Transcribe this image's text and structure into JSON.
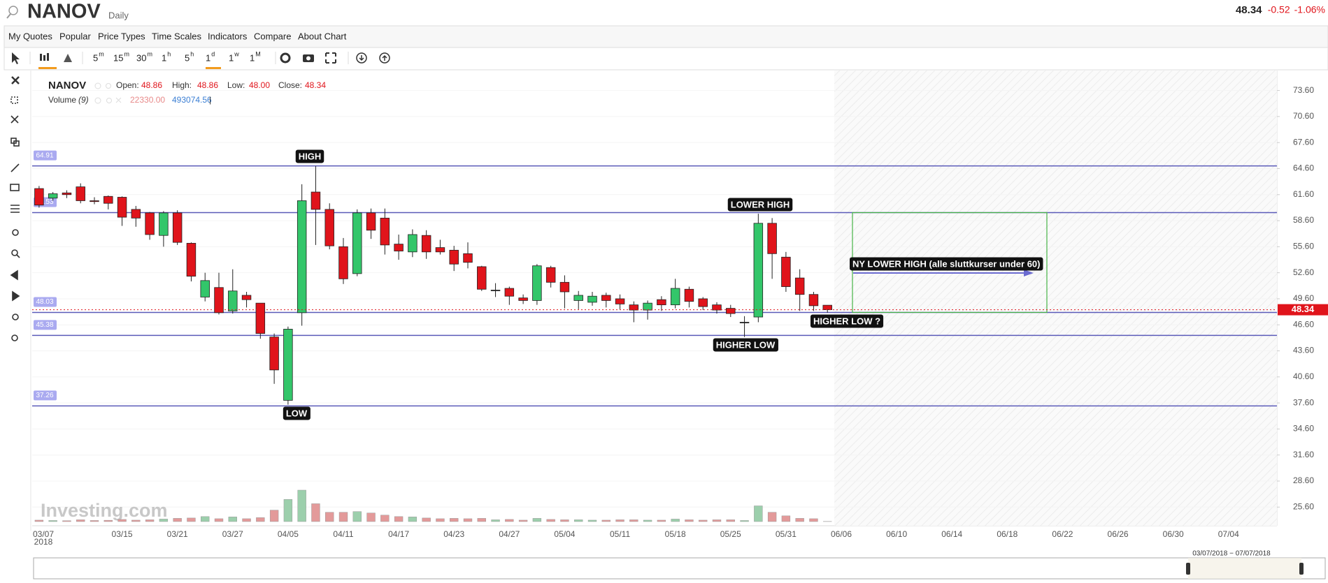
{
  "header": {
    "symbol": "NANOV",
    "interval": "Daily",
    "price": "48.34",
    "change": "-0.52",
    "change_pct": "-1.06%"
  },
  "menu": [
    "My Quotes",
    "Popular",
    "Price Types",
    "Time Scales",
    "Indicators",
    "Compare",
    "About Chart"
  ],
  "toolbar": {
    "timeframes": [
      {
        "n": "5",
        "u": "m"
      },
      {
        "n": "15",
        "u": "m"
      },
      {
        "n": "30",
        "u": "m"
      },
      {
        "n": "1",
        "u": "h"
      },
      {
        "n": "5",
        "u": "h"
      },
      {
        "n": "1",
        "u": "d"
      },
      {
        "n": "1",
        "u": "w"
      },
      {
        "n": "1",
        "u": "M"
      }
    ]
  },
  "legend": {
    "symbol": "NANOV",
    "open_label": "Open:",
    "open": "48.86",
    "high_label": "High:",
    "high": "48.86",
    "low_label": "Low:",
    "low": "48.00",
    "close_label": "Close:",
    "close": "48.34",
    "volume_label": "Volume",
    "volume_period": "(9)",
    "volume": "22330.00",
    "volume_ma": "493074.56",
    "separator": "|"
  },
  "chart_data": {
    "type": "candlestick",
    "up_color": "#33c66a",
    "down_color": "#e0141b",
    "volume_up_color": "#9ccfac",
    "volume_down_color": "#e39a9a",
    "level_color": "#5a5ab8",
    "grid": true,
    "categories": [
      "03/07",
      null,
      null,
      null,
      null,
      null,
      "03/15",
      null,
      null,
      null,
      "03/21",
      null,
      null,
      null,
      "03/27",
      null,
      null,
      null,
      "04/05",
      null,
      null,
      null,
      "04/11",
      null,
      null,
      null,
      "04/17",
      null,
      null,
      null,
      "04/23",
      null,
      null,
      null,
      "04/27",
      null,
      null,
      null,
      "05/04",
      null,
      null,
      null,
      "05/11",
      null,
      null,
      null,
      "05/18",
      null,
      null,
      null,
      "05/25",
      null,
      null,
      null,
      "05/31",
      null,
      null,
      null,
      "06/06",
      null,
      null,
      null,
      "06/10",
      null,
      null,
      null,
      "06/14",
      null,
      null,
      null,
      "06/18",
      null,
      null,
      null,
      "06/22",
      null,
      null,
      null,
      "06/26",
      null,
      null,
      null,
      "06/30",
      null,
      null,
      null,
      "07/04",
      null,
      null,
      null
    ],
    "x_sub_label": "2018",
    "open": [
      62.3,
      61.2,
      61.8,
      62.5,
      60.9,
      61.4,
      61.3,
      59.9,
      59.5,
      56.9,
      59.5,
      56.0,
      49.8,
      50.9,
      48.2,
      50.0,
      49.1,
      45.2,
      37.9,
      48.0,
      61.9,
      59.9,
      55.6,
      52.5,
      59.5,
      58.9,
      55.9,
      55.0,
      56.9,
      55.5,
      55.2,
      54.8,
      53.3,
      50.6,
      50.8,
      49.7,
      49.4,
      53.2,
      51.5,
      49.4,
      49.2,
      50.0,
      49.6,
      48.9,
      48.3,
      49.5,
      48.9,
      50.7,
      49.6,
      48.9,
      48.5,
      46.9,
      47.5,
      58.3,
      54.4,
      52.0,
      50.1,
      48.86,
      null,
      null,
      null,
      null,
      null,
      null,
      null,
      null,
      null,
      null,
      null,
      null,
      null,
      null,
      null,
      null,
      null,
      null,
      null,
      null,
      null,
      null,
      null,
      null,
      null,
      null,
      null,
      null,
      null,
      null,
      null,
      null
    ],
    "high": [
      62.6,
      61.9,
      62.1,
      62.9,
      61.3,
      61.5,
      61.4,
      60.3,
      59.6,
      59.7,
      59.8,
      56.1,
      52.6,
      52.6,
      53.0,
      50.4,
      49.1,
      45.6,
      46.4,
      62.8,
      64.9,
      60.6,
      56.6,
      59.9,
      60.0,
      60.0,
      57.0,
      57.6,
      57.5,
      56.4,
      55.7,
      56.1,
      53.4,
      51.4,
      51.0,
      50.1,
      53.6,
      53.4,
      52.3,
      50.5,
      50.4,
      50.3,
      50.1,
      49.3,
      49.4,
      49.9,
      51.9,
      51.0,
      49.8,
      49.2,
      48.9,
      47.6,
      59.4,
      58.9,
      55.0,
      53.0,
      50.4,
      48.86,
      null,
      null,
      null,
      null,
      null,
      null,
      null,
      null,
      null,
      null,
      null,
      null,
      null,
      null,
      null,
      null,
      null,
      null,
      null,
      null,
      null,
      null,
      null,
      null,
      null,
      null,
      null,
      null,
      null,
      null,
      null,
      null
    ],
    "low": [
      60.1,
      60.9,
      61.2,
      60.6,
      60.5,
      59.9,
      58.0,
      57.9,
      56.4,
      55.6,
      55.8,
      51.6,
      49.3,
      47.8,
      47.9,
      48.6,
      45.0,
      39.8,
      37.4,
      46.5,
      55.8,
      55.3,
      51.3,
      52.2,
      56.5,
      54.7,
      54.1,
      54.4,
      54.2,
      54.7,
      52.8,
      53.1,
      50.5,
      49.8,
      48.9,
      49.0,
      48.9,
      50.9,
      48.5,
      48.4,
      48.8,
      48.6,
      48.4,
      46.9,
      47.2,
      48.2,
      48.5,
      48.6,
      48.3,
      47.9,
      47.5,
      45.2,
      46.9,
      51.9,
      50.4,
      48.2,
      48.2,
      48,
      null,
      null,
      null,
      null,
      null,
      null,
      null,
      null,
      null,
      null,
      null,
      null,
      null,
      null,
      null,
      null,
      null,
      null,
      null,
      null,
      null,
      null,
      null,
      null,
      null,
      null,
      null,
      null,
      null,
      null,
      null,
      null
    ],
    "close": [
      60.4,
      61.7,
      61.6,
      60.9,
      60.8,
      60.6,
      59.0,
      58.9,
      57.0,
      59.5,
      56.1,
      52.2,
      51.7,
      48.0,
      50.5,
      49.5,
      45.6,
      41.4,
      46.1,
      60.9,
      59.9,
      55.7,
      51.9,
      59.5,
      57.5,
      55.8,
      55.1,
      57.0,
      55.0,
      55.0,
      53.6,
      53.8,
      50.7,
      50.6,
      49.9,
      49.4,
      53.4,
      51.5,
      50.4,
      50.0,
      49.9,
      49.4,
      49.0,
      48.3,
      49.1,
      48.9,
      50.8,
      49.3,
      48.7,
      48.3,
      47.9,
      46.9,
      58.3,
      54.8,
      51.0,
      50.1,
      48.8,
      48.34,
      null,
      null,
      null,
      null,
      null,
      null,
      null,
      null,
      null,
      null,
      null,
      null,
      null,
      null,
      null,
      null,
      null,
      null,
      null,
      null,
      null,
      null,
      null,
      null,
      null,
      null,
      null,
      null,
      null,
      null,
      null,
      null
    ],
    "volume": [
      200000,
      150000,
      120000,
      250000,
      150000,
      180000,
      300000,
      200000,
      250000,
      350000,
      450000,
      500000,
      700000,
      400000,
      650000,
      400000,
      550000,
      1600000,
      3100000,
      4400000,
      2500000,
      1300000,
      1300000,
      1400000,
      1200000,
      900000,
      700000,
      650000,
      500000,
      400000,
      450000,
      400000,
      450000,
      250000,
      300000,
      200000,
      450000,
      300000,
      250000,
      250000,
      200000,
      200000,
      250000,
      250000,
      200000,
      200000,
      350000,
      250000,
      200000,
      250000,
      250000,
      150000,
      2200000,
      1300000,
      800000,
      450000,
      400000,
      22330,
      null,
      null,
      null,
      null,
      null,
      null,
      null,
      null,
      null,
      null,
      null,
      null,
      null,
      null,
      null,
      null,
      null,
      null,
      null,
      null,
      null,
      null,
      null,
      null,
      null,
      null,
      null,
      null,
      null,
      null,
      null,
      null
    ],
    "ylim": [
      23.45,
      75.74
    ],
    "yticks": [
      {
        "value": 73.6,
        "label": "73.60"
      },
      {
        "value": 70.6,
        "label": "70.60"
      },
      {
        "value": 67.6,
        "label": "67.60"
      },
      {
        "value": 64.6,
        "label": "64.60"
      },
      {
        "value": 61.6,
        "label": "61.60"
      },
      {
        "value": 58.6,
        "label": "58.60"
      },
      {
        "value": 55.6,
        "label": "55.60"
      },
      {
        "value": 52.6,
        "label": "52.60"
      },
      {
        "value": 49.6,
        "label": "49.60"
      },
      {
        "value": 46.6,
        "label": "46.60"
      },
      {
        "value": 43.6,
        "label": "43.60"
      },
      {
        "value": 40.6,
        "label": "40.60"
      },
      {
        "value": 37.6,
        "label": "37.60"
      },
      {
        "value": 34.6,
        "label": "34.60"
      },
      {
        "value": 31.6,
        "label": "31.60"
      },
      {
        "value": 28.6,
        "label": "28.60"
      },
      {
        "value": 25.6,
        "label": "25.60"
      }
    ],
    "levels": [
      64.91,
      59.53,
      48.03,
      45.38,
      37.26
    ],
    "annotations": [
      "HIGH",
      "LOW",
      "LOWER HIGH",
      "HIGHER LOW",
      "HIGHER LOW ?",
      "NY LOWER HIGH (alle sluttkurser under 60)"
    ],
    "watermark": "Investing.com"
  },
  "navigator": {
    "range": "03/07/2018 − 07/07/2018"
  }
}
